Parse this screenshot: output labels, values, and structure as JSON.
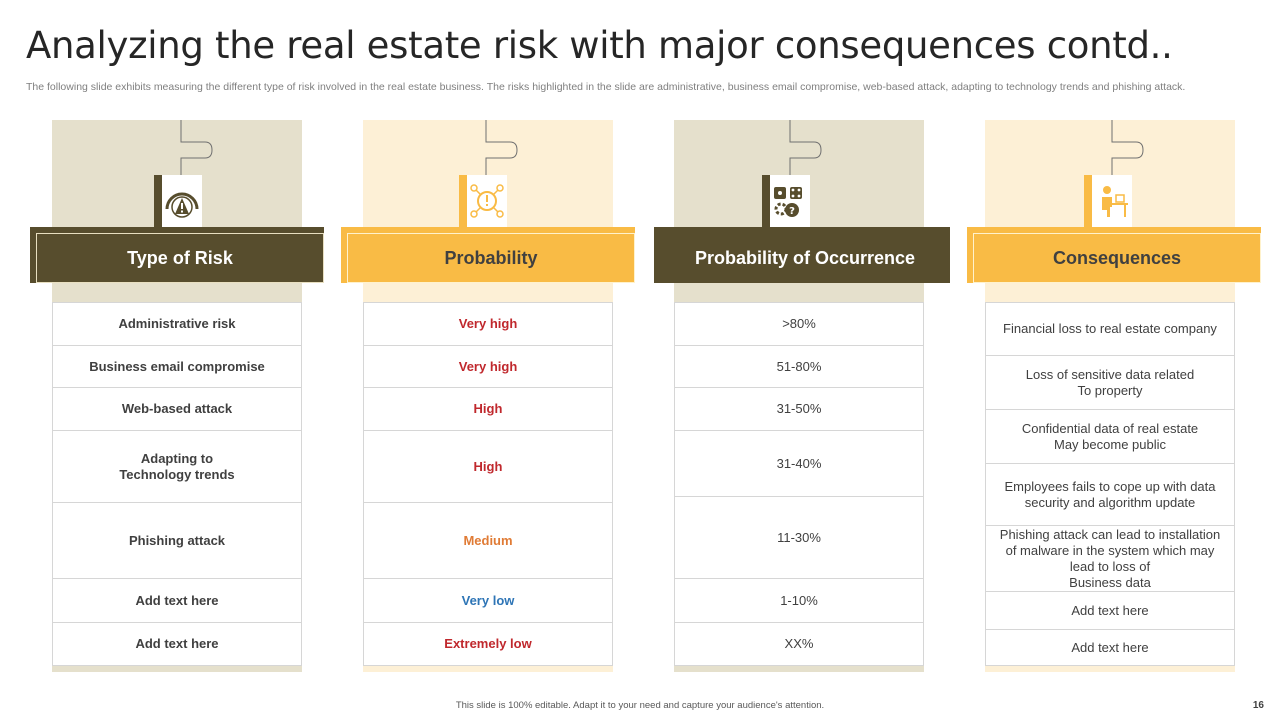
{
  "title": "Analyzing the real estate risk with major consequences contd..",
  "subtitle": "The following slide exhibits measuring the different type  of risk involved in the real estate business. The risks highlighted in the slide are administrative, business email compromise, web-based attack, adapting to technology trends and phishing attack.",
  "colors": {
    "dark_olive": "#574d2d",
    "gold": "#f9bb45",
    "beige_dark": "#e5e0cc",
    "beige_light": "#fdf0d6",
    "red": "#c0282d",
    "orange": "#e07b35",
    "blue": "#2e75b6"
  },
  "columns": [
    {
      "header": "Type of Risk",
      "icon": "gauge-warning-icon",
      "cells": [
        "Administrative  risk",
        "Business  email compromise",
        "Web-based attack",
        "Adapting to\nTechnology trends",
        "Phishing attack",
        "Add text here",
        "Add text here"
      ]
    },
    {
      "header": "Probability",
      "icon": "network-alert-icon",
      "cells": [
        "Very high",
        "Very high",
        "High",
        "High",
        "Medium",
        "Very low",
        "Extremely low"
      ]
    },
    {
      "header": "Probability of Occurrence",
      "icon": "dice-gears-icon",
      "cells": [
        ">80%",
        "51-80%",
        "31-50%",
        "31-40%",
        "11-30%",
        "1-10%",
        "XX%"
      ]
    },
    {
      "header": "Consequences",
      "icon": "person-desk-icon",
      "cells": [
        "Financial loss to real estate company",
        "Loss of sensitive  data related\nTo property",
        "Confidential  data of real estate\nMay become public",
        "Employees fails to cope up with data\nsecurity and algorithm update",
        "Phishing attack can lead to installation\nof malware  in the system which may\nlead to loss of\nBusiness data",
        "Add text here",
        "Add text here"
      ]
    }
  ],
  "footer": "This slide is 100% editable.  Adapt it to your need and capture your audience's attention.",
  "page_number": "16"
}
